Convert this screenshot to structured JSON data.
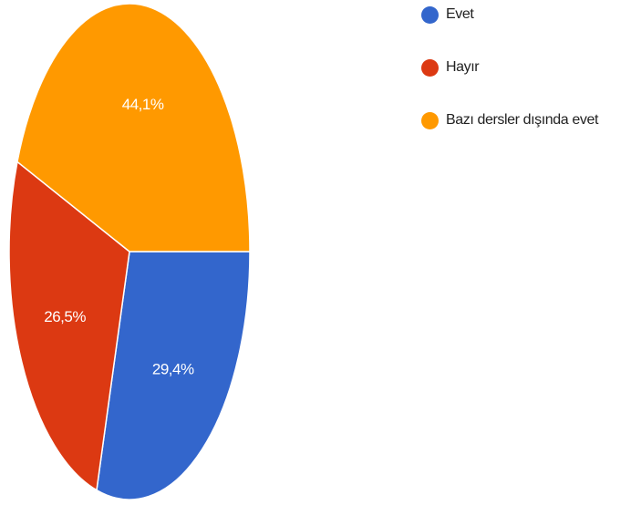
{
  "chart_data": {
    "type": "pie",
    "title": "",
    "series": [
      {
        "name": "Evet",
        "value": 29.4,
        "label": "29,4%",
        "color": "#3366cc"
      },
      {
        "name": "Hayır",
        "value": 26.5,
        "label": "26,5%",
        "color": "#dc3912"
      },
      {
        "name": "Bazı dersler dışında evet",
        "value": 44.1,
        "label": "44,1%",
        "color": "#ff9900"
      }
    ],
    "legend_position": "right"
  }
}
